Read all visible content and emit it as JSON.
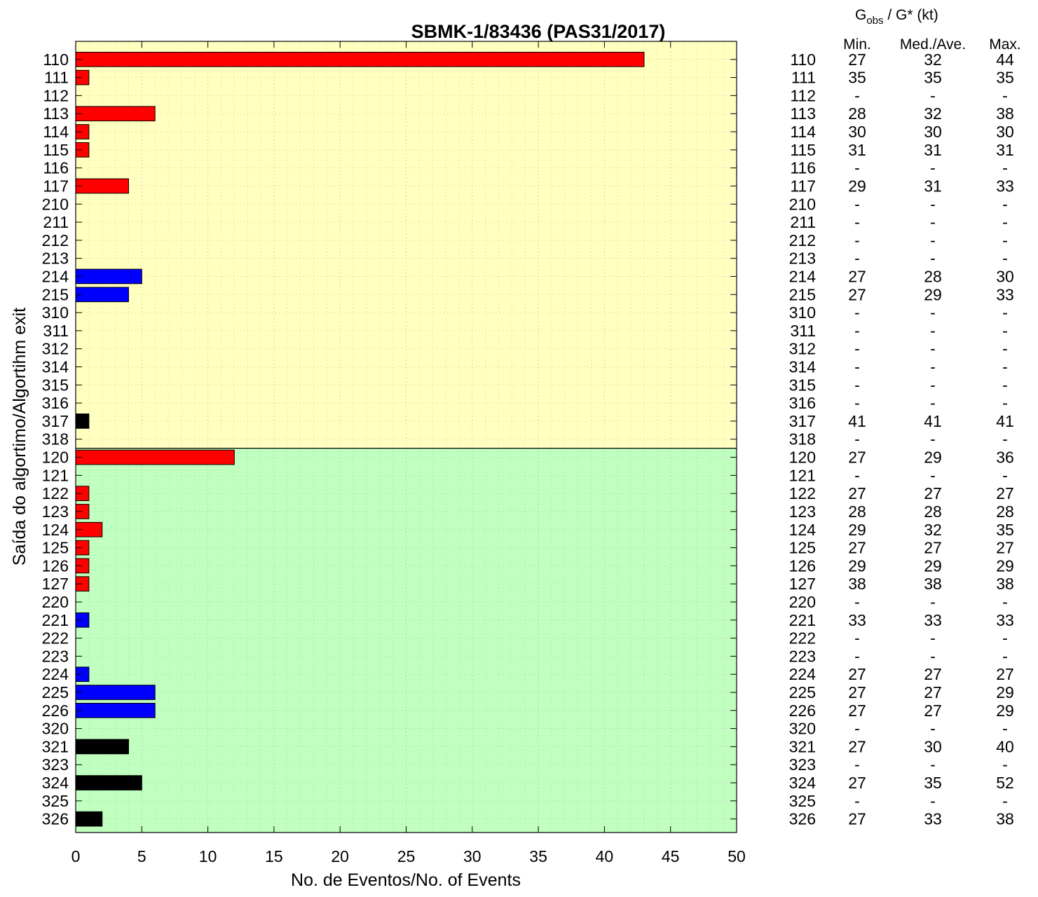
{
  "chart_data": {
    "type": "bar",
    "orientation": "horizontal",
    "title": "SBMK-1/83436 (PAS31/2017)",
    "xlabel": "No. de Eventos/No. of Events",
    "ylabel": "Saída do algortimo/Algortihm exit",
    "xlim": [
      0,
      50
    ],
    "xticks": [
      "0",
      "5",
      "10",
      "15",
      "20",
      "25",
      "30",
      "35",
      "40",
      "45",
      "50"
    ],
    "grid": true,
    "panel_colors": {
      "upper": "#ffffc0",
      "lower": "#c0ffc0"
    },
    "bar_colors": {
      "red": "#ff0000",
      "blue": "#0000ff",
      "black": "#000000"
    },
    "categories": [
      "110",
      "111",
      "112",
      "113",
      "114",
      "115",
      "116",
      "117",
      "210",
      "211",
      "212",
      "213",
      "214",
      "215",
      "310",
      "311",
      "312",
      "314",
      "315",
      "316",
      "317",
      "318",
      "120",
      "121",
      "122",
      "123",
      "124",
      "125",
      "126",
      "127",
      "220",
      "221",
      "222",
      "223",
      "224",
      "225",
      "226",
      "320",
      "321",
      "323",
      "324",
      "325",
      "326"
    ],
    "values": [
      43,
      1,
      0,
      6,
      1,
      1,
      0,
      4,
      0,
      0,
      0,
      0,
      5,
      4,
      0,
      0,
      0,
      0,
      0,
      0,
      1,
      0,
      12,
      0,
      1,
      1,
      2,
      1,
      1,
      1,
      0,
      1,
      0,
      0,
      1,
      6,
      6,
      0,
      4,
      0,
      5,
      0,
      2
    ],
    "colors": [
      "red",
      "red",
      "red",
      "red",
      "red",
      "red",
      "red",
      "red",
      "blue",
      "blue",
      "blue",
      "blue",
      "blue",
      "blue",
      "black",
      "black",
      "black",
      "black",
      "black",
      "black",
      "black",
      "black",
      "red",
      "red",
      "red",
      "red",
      "red",
      "red",
      "red",
      "red",
      "blue",
      "blue",
      "blue",
      "blue",
      "blue",
      "blue",
      "blue",
      "black",
      "black",
      "black",
      "black",
      "black",
      "black"
    ],
    "panel_split_after": "318"
  },
  "table": {
    "header_g": "G",
    "header_sub": "obs",
    "header_rest": " / G* (kt)",
    "columns": [
      "Min.",
      "Med./Ave.",
      "Max."
    ],
    "rows": [
      [
        "27",
        "32",
        "44"
      ],
      [
        "35",
        "35",
        "35"
      ],
      [
        "-",
        "-",
        "-"
      ],
      [
        "28",
        "32",
        "38"
      ],
      [
        "30",
        "30",
        "30"
      ],
      [
        "31",
        "31",
        "31"
      ],
      [
        "-",
        "-",
        "-"
      ],
      [
        "29",
        "31",
        "33"
      ],
      [
        "-",
        "-",
        "-"
      ],
      [
        "-",
        "-",
        "-"
      ],
      [
        "-",
        "-",
        "-"
      ],
      [
        "-",
        "-",
        "-"
      ],
      [
        "27",
        "28",
        "30"
      ],
      [
        "27",
        "29",
        "33"
      ],
      [
        "-",
        "-",
        "-"
      ],
      [
        "-",
        "-",
        "-"
      ],
      [
        "-",
        "-",
        "-"
      ],
      [
        "-",
        "-",
        "-"
      ],
      [
        "-",
        "-",
        "-"
      ],
      [
        "-",
        "-",
        "-"
      ],
      [
        "41",
        "41",
        "41"
      ],
      [
        "-",
        "-",
        "-"
      ],
      [
        "27",
        "29",
        "36"
      ],
      [
        "-",
        "-",
        "-"
      ],
      [
        "27",
        "27",
        "27"
      ],
      [
        "28",
        "28",
        "28"
      ],
      [
        "29",
        "32",
        "35"
      ],
      [
        "27",
        "27",
        "27"
      ],
      [
        "29",
        "29",
        "29"
      ],
      [
        "38",
        "38",
        "38"
      ],
      [
        "-",
        "-",
        "-"
      ],
      [
        "33",
        "33",
        "33"
      ],
      [
        "-",
        "-",
        "-"
      ],
      [
        "-",
        "-",
        "-"
      ],
      [
        "27",
        "27",
        "27"
      ],
      [
        "27",
        "27",
        "29"
      ],
      [
        "27",
        "27",
        "29"
      ],
      [
        "-",
        "-",
        "-"
      ],
      [
        "27",
        "30",
        "40"
      ],
      [
        "-",
        "-",
        "-"
      ],
      [
        "27",
        "35",
        "52"
      ],
      [
        "-",
        "-",
        "-"
      ],
      [
        "27",
        "33",
        "38"
      ]
    ]
  }
}
